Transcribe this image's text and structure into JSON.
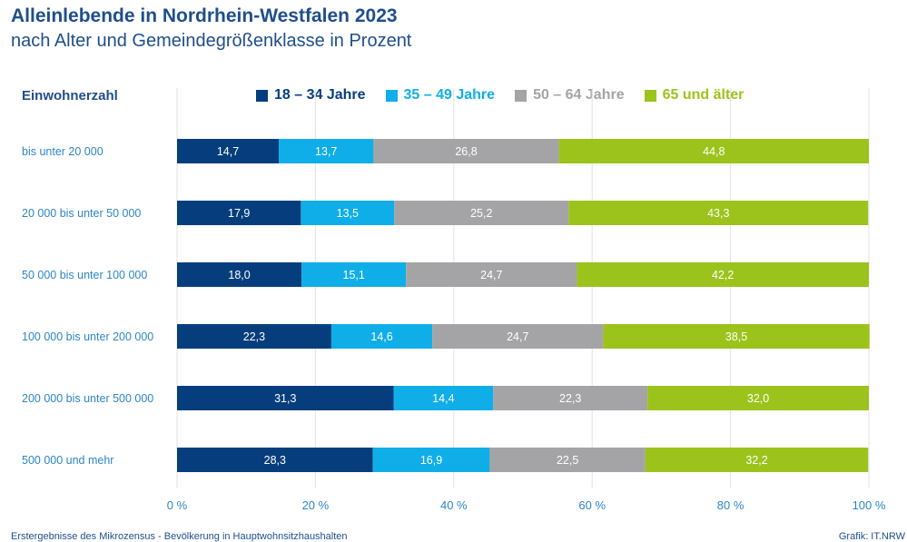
{
  "header": {
    "title": "Alleinlebende in Nordrhein-Westfalen 2023",
    "subtitle": "nach Alter und Gemeindegrößenklasse in Prozent"
  },
  "footer": {
    "source": "Erstergebnisse des Mikrozensus - Bevölkerung in Hauptwohnsitzhaushalten",
    "credit": "Grafik: IT.NRW"
  },
  "chart_data": {
    "type": "bar",
    "orientation": "horizontal",
    "stacked": true,
    "category_axis_title": "Einwohnerzahl",
    "categories": [
      "bis unter 20 000",
      "20 000 bis unter 50 000",
      "50 000 bis unter 100 000",
      "100 000 bis unter 200 000",
      "200 000 bis unter 500 000",
      "500 000 und mehr"
    ],
    "series": [
      {
        "name": "18 – 34 Jahre",
        "color": "#063e7d",
        "values": [
          14.7,
          17.9,
          18.0,
          22.3,
          31.3,
          28.3
        ],
        "labels": [
          "14,7",
          "17,9",
          "18,0",
          "22,3",
          "31,3",
          "28,3"
        ]
      },
      {
        "name": "35 – 49 Jahre",
        "color": "#10aee8",
        "values": [
          13.7,
          13.5,
          15.1,
          14.6,
          14.4,
          16.9
        ],
        "labels": [
          "13,7",
          "13,5",
          "15,1",
          "14,6",
          "14,4",
          "16,9"
        ]
      },
      {
        "name": "50 – 64 Jahre",
        "color": "#a4a4a6",
        "values": [
          26.8,
          25.2,
          24.7,
          24.7,
          22.3,
          22.5
        ],
        "labels": [
          "26,8",
          "25,2",
          "24,7",
          "24,7",
          "22,3",
          "22,5"
        ]
      },
      {
        "name": "65 und älter",
        "color": "#9bc31b",
        "values": [
          44.8,
          43.3,
          42.2,
          38.5,
          32.0,
          32.2
        ],
        "labels": [
          "44,8",
          "43,3",
          "42,2",
          "38,5",
          "32,0",
          "32,2"
        ]
      }
    ],
    "xlim": [
      0,
      100
    ],
    "xticks": [
      0,
      20,
      40,
      60,
      80,
      100
    ],
    "xtick_labels": [
      "0 %",
      "20 %",
      "40 %",
      "60 %",
      "80 %",
      "100 %"
    ],
    "grid": true,
    "legend_position": "top"
  }
}
